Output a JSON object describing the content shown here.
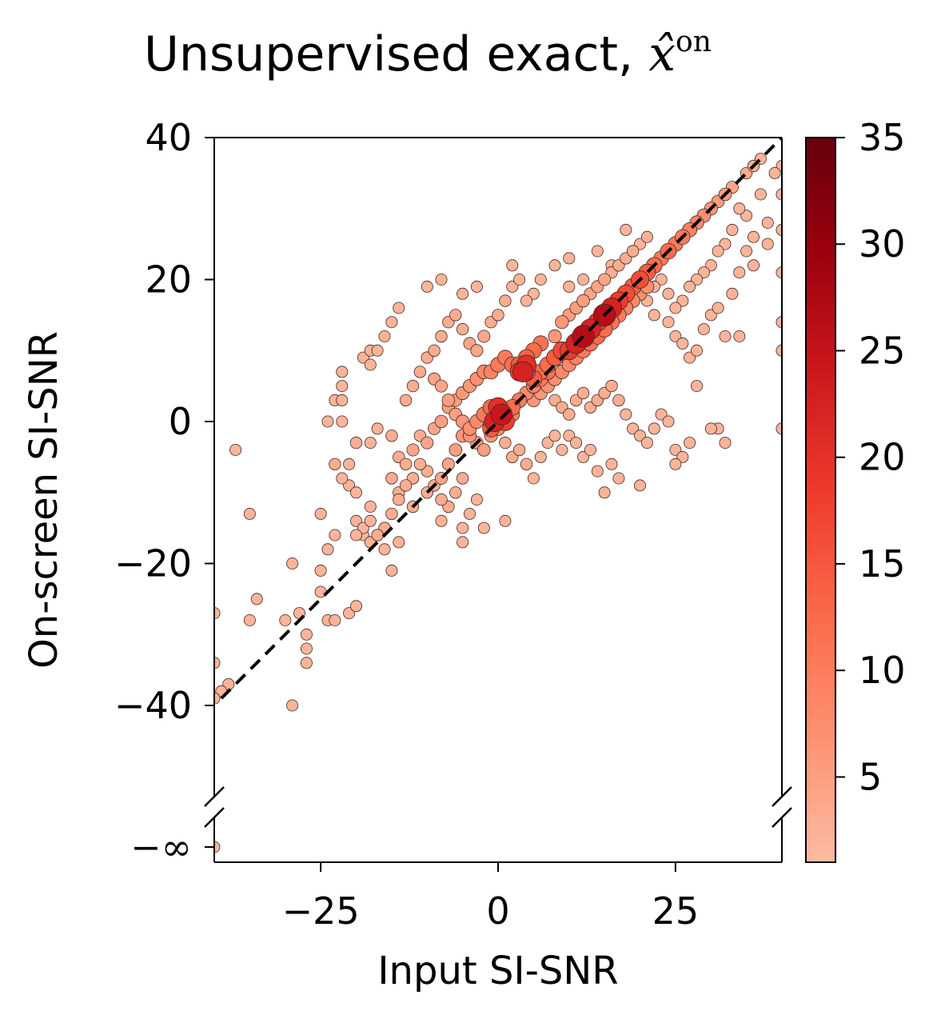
{
  "chart_data": {
    "type": "scatter",
    "title": "Unsupervised exact, ",
    "title_math": "x̂",
    "title_superscript": "on",
    "xlabel": "Input SI-SNR",
    "ylabel": "On-screen SI-SNR",
    "xlim": [
      -40,
      40
    ],
    "ylim": [
      -40,
      40
    ],
    "y_break_label": "−∞",
    "xticks": [
      -25,
      0,
      25
    ],
    "xtick_labels": [
      "−25",
      "0",
      "25"
    ],
    "yticks": [
      40,
      20,
      0,
      -20,
      -40
    ],
    "ytick_labels": [
      "40",
      "20",
      "0",
      "−20",
      "−40"
    ],
    "reference_line": "y = x",
    "colorbar": {
      "range": [
        1,
        35
      ],
      "ticks": [
        5,
        10,
        15,
        20,
        25,
        30,
        35
      ],
      "tick_labels": [
        "5",
        "10",
        "15",
        "20",
        "25",
        "30",
        "35"
      ],
      "colors": [
        "#fcbba1",
        "#fc9272",
        "#fb6a4a",
        "#ef3b2c",
        "#cb181d",
        "#99000d",
        "#67000d"
      ]
    },
    "marker_edge_color": "#3a2a2a",
    "points": [
      [
        -37,
        -4,
        2
      ],
      [
        -35,
        -13,
        2
      ],
      [
        -34,
        -25,
        2
      ],
      [
        -35,
        -28,
        2
      ],
      [
        -38,
        -37,
        2
      ],
      [
        -39,
        -38,
        2
      ],
      [
        -30,
        -28,
        2
      ],
      [
        -29,
        -20,
        2
      ],
      [
        -29,
        -40,
        2
      ],
      [
        -27,
        -30,
        2
      ],
      [
        -28,
        -27,
        2
      ],
      [
        -27,
        -32,
        2
      ],
      [
        -27,
        -34,
        2
      ],
      [
        -25,
        -24,
        2
      ],
      [
        -24,
        -28,
        2
      ],
      [
        -25,
        -21,
        2
      ],
      [
        -23,
        -28,
        2
      ],
      [
        -21,
        -27,
        2
      ],
      [
        -25,
        -13,
        2
      ],
      [
        -24,
        -18,
        2
      ],
      [
        -23,
        -16,
        2
      ],
      [
        -24,
        0,
        2
      ],
      [
        -22,
        0,
        2
      ],
      [
        -21,
        -6,
        2
      ],
      [
        -21,
        -9,
        2
      ],
      [
        -23,
        -6,
        3
      ],
      [
        -22,
        -8,
        2
      ],
      [
        -22,
        7,
        2
      ],
      [
        -22,
        5,
        2
      ],
      [
        -23,
        3,
        2
      ],
      [
        -22,
        3,
        2
      ],
      [
        -20,
        -10,
        2
      ],
      [
        -18,
        -12,
        2
      ],
      [
        -20,
        -14,
        2
      ],
      [
        -19,
        -16,
        2
      ],
      [
        -19,
        9,
        2
      ],
      [
        -18,
        10,
        2
      ],
      [
        -20,
        -3,
        3
      ],
      [
        -18,
        -3,
        2
      ],
      [
        -17,
        -1,
        2
      ],
      [
        -15,
        -2,
        3
      ],
      [
        -14,
        -5,
        3
      ],
      [
        -13,
        -6,
        3
      ],
      [
        -12,
        -4,
        4
      ],
      [
        -11,
        -2,
        3
      ],
      [
        -10,
        -3,
        4
      ],
      [
        -9,
        -1,
        4
      ],
      [
        -8,
        0,
        5
      ],
      [
        -7,
        2,
        5
      ],
      [
        -6,
        3,
        5
      ],
      [
        -5,
        4,
        6
      ],
      [
        -4,
        5,
        6
      ],
      [
        -3,
        6,
        7
      ],
      [
        -2,
        7,
        8
      ],
      [
        -1,
        7,
        9
      ],
      [
        0,
        8,
        10
      ],
      [
        1,
        9,
        10
      ],
      [
        2,
        8,
        12
      ],
      [
        3,
        8,
        14
      ],
      [
        4,
        9,
        13
      ],
      [
        5,
        10,
        12
      ],
      [
        6,
        11,
        11
      ],
      [
        -13,
        3,
        3
      ],
      [
        -12,
        5,
        3
      ],
      [
        -11,
        7,
        3
      ],
      [
        -10,
        9,
        3
      ],
      [
        -9,
        10,
        3
      ],
      [
        -8,
        12,
        3
      ],
      [
        -7,
        14,
        3
      ],
      [
        -6,
        15,
        3
      ],
      [
        -5,
        13,
        3
      ],
      [
        -4,
        11,
        4
      ],
      [
        -3,
        10,
        4
      ],
      [
        -2,
        12,
        4
      ],
      [
        -1,
        14,
        3
      ],
      [
        0,
        15,
        3
      ],
      [
        1,
        17,
        3
      ],
      [
        2,
        19,
        2
      ],
      [
        3,
        20,
        2
      ],
      [
        -3,
        19,
        2
      ],
      [
        -5,
        18,
        2
      ],
      [
        -8,
        20,
        2
      ],
      [
        -10,
        19,
        2
      ],
      [
        -14,
        16,
        2
      ],
      [
        -15,
        14,
        2
      ],
      [
        -16,
        12,
        2
      ],
      [
        -17,
        10,
        2
      ],
      [
        -18,
        8,
        2
      ],
      [
        -15,
        -8,
        3
      ],
      [
        -14,
        -10,
        3
      ],
      [
        -12,
        -12,
        3
      ],
      [
        -10,
        -10,
        3
      ],
      [
        -8,
        -8,
        4
      ],
      [
        -7,
        -6,
        4
      ],
      [
        -6,
        -4,
        5
      ],
      [
        -5,
        -2,
        6
      ],
      [
        -4,
        -1,
        7
      ],
      [
        -3,
        0,
        8
      ],
      [
        -2,
        1,
        10
      ],
      [
        -1,
        2,
        12
      ],
      [
        0,
        1,
        16
      ],
      [
        0,
        2,
        20
      ],
      [
        -0.5,
        0,
        22
      ],
      [
        0.5,
        1,
        24
      ],
      [
        1,
        0,
        18
      ],
      [
        -1,
        -1,
        14
      ],
      [
        2,
        2,
        12
      ],
      [
        3,
        3,
        10
      ],
      [
        3.5,
        7,
        22
      ],
      [
        4,
        8,
        20
      ],
      [
        3,
        7,
        18
      ],
      [
        4,
        7,
        16
      ],
      [
        5,
        6,
        14
      ],
      [
        6,
        7,
        12
      ],
      [
        7,
        8,
        12
      ],
      [
        8,
        9,
        14
      ],
      [
        9,
        10,
        16
      ],
      [
        10,
        10,
        18
      ],
      [
        11,
        11,
        22
      ],
      [
        12,
        12,
        26
      ],
      [
        13,
        13,
        22
      ],
      [
        14,
        14,
        18
      ],
      [
        15,
        15,
        26
      ],
      [
        16,
        16,
        22
      ],
      [
        17,
        17,
        18
      ],
      [
        18,
        18,
        16
      ],
      [
        19,
        19,
        14
      ],
      [
        20,
        20,
        16
      ],
      [
        21,
        21,
        14
      ],
      [
        22,
        22,
        12
      ],
      [
        23,
        23,
        10
      ],
      [
        24,
        24,
        12
      ],
      [
        25,
        25,
        10
      ],
      [
        26,
        26,
        10
      ],
      [
        27,
        27,
        9
      ],
      [
        28,
        28,
        8
      ],
      [
        29,
        29,
        7
      ],
      [
        30,
        30,
        6
      ],
      [
        31,
        31,
        5
      ],
      [
        32,
        32,
        5
      ],
      [
        33,
        33,
        4
      ],
      [
        35,
        35,
        3
      ],
      [
        36,
        36,
        3
      ],
      [
        37,
        37,
        2
      ],
      [
        8,
        12,
        6
      ],
      [
        9,
        14,
        6
      ],
      [
        10,
        15,
        5
      ],
      [
        11,
        16,
        5
      ],
      [
        12,
        17,
        5
      ],
      [
        13,
        18,
        4
      ],
      [
        14,
        19,
        4
      ],
      [
        15,
        20,
        4
      ],
      [
        16,
        21,
        3
      ],
      [
        17,
        22,
        3
      ],
      [
        18,
        23,
        3
      ],
      [
        19,
        24,
        3
      ],
      [
        20,
        25,
        2
      ],
      [
        21,
        26,
        2
      ],
      [
        14,
        24,
        2
      ],
      [
        18,
        27,
        2
      ],
      [
        12,
        20,
        2
      ],
      [
        10,
        19,
        2
      ],
      [
        8,
        22,
        2
      ],
      [
        6,
        20,
        2
      ],
      [
        5,
        18,
        2
      ],
      [
        4,
        17,
        2
      ],
      [
        2,
        22,
        2
      ],
      [
        10,
        23,
        2
      ],
      [
        16,
        22,
        2
      ],
      [
        20,
        18,
        2
      ],
      [
        22,
        15,
        2
      ],
      [
        24,
        14,
        2
      ],
      [
        25,
        12,
        2
      ],
      [
        26,
        11,
        2
      ],
      [
        27,
        9,
        2
      ],
      [
        28,
        10,
        2
      ],
      [
        29,
        13,
        2
      ],
      [
        30,
        15,
        2
      ],
      [
        31,
        16,
        2
      ],
      [
        32,
        12,
        2
      ],
      [
        33,
        18,
        2
      ],
      [
        34,
        21,
        2
      ],
      [
        35,
        24,
        2
      ],
      [
        36,
        22,
        2
      ],
      [
        8,
        3,
        3
      ],
      [
        9,
        2,
        3
      ],
      [
        10,
        1,
        3
      ],
      [
        11,
        3,
        3
      ],
      [
        12,
        4,
        3
      ],
      [
        13,
        2,
        3
      ],
      [
        14,
        3,
        3
      ],
      [
        15,
        4,
        3
      ],
      [
        16,
        5,
        3
      ],
      [
        17,
        3,
        3
      ],
      [
        18,
        1,
        2
      ],
      [
        19,
        -1,
        2
      ],
      [
        20,
        -2,
        2
      ],
      [
        21,
        -3,
        2
      ],
      [
        22,
        -1,
        2
      ],
      [
        23,
        1,
        2
      ],
      [
        24,
        0,
        2
      ],
      [
        25,
        -4,
        2
      ],
      [
        26,
        -5,
        2
      ],
      [
        27,
        -3,
        2
      ],
      [
        28,
        5,
        2
      ],
      [
        31,
        -1,
        2
      ],
      [
        32,
        -3,
        2
      ],
      [
        34,
        12,
        2
      ],
      [
        1,
        -3,
        3
      ],
      [
        2,
        -5,
        3
      ],
      [
        3,
        -4,
        3
      ],
      [
        4,
        -6,
        3
      ],
      [
        5,
        -8,
        2
      ],
      [
        6,
        -5,
        2
      ],
      [
        7,
        -3,
        2
      ],
      [
        8,
        -2,
        2
      ],
      [
        9,
        -4,
        2
      ],
      [
        10,
        -2,
        2
      ],
      [
        11,
        -3,
        2
      ],
      [
        12,
        -5,
        2
      ],
      [
        13,
        -4,
        2
      ],
      [
        14,
        -7,
        2
      ],
      [
        15,
        -10,
        2
      ],
      [
        16,
        -6,
        2
      ],
      [
        17,
        -8,
        2
      ],
      [
        20,
        -9,
        2
      ],
      [
        25,
        -6,
        2
      ],
      [
        30,
        -1,
        2
      ],
      [
        -5,
        -8,
        3
      ],
      [
        -6,
        -10,
        3
      ],
      [
        -7,
        -12,
        3
      ],
      [
        -8,
        -14,
        2
      ],
      [
        -5,
        -15,
        2
      ],
      [
        -5,
        -17,
        2
      ],
      [
        -4,
        -13,
        2
      ],
      [
        -3,
        -11,
        2
      ],
      [
        -2,
        -15,
        2
      ],
      [
        1,
        -14,
        2
      ],
      [
        -8,
        -11,
        3
      ],
      [
        -9,
        -9,
        3
      ],
      [
        -10,
        -7,
        3
      ],
      [
        -11,
        -6,
        3
      ],
      [
        -12,
        -8,
        3
      ],
      [
        -13,
        -9,
        3
      ],
      [
        -14,
        -11,
        3
      ],
      [
        -15,
        -13,
        3
      ],
      [
        -16,
        -15,
        3
      ],
      [
        -17,
        -16,
        3
      ],
      [
        -18,
        -17,
        2
      ],
      [
        -19,
        -15,
        2
      ],
      [
        -20,
        -16,
        2
      ],
      [
        -16,
        -18,
        2
      ],
      [
        -15,
        -21,
        2
      ],
      [
        -14,
        -17,
        2
      ],
      [
        -20,
        -26,
        2
      ],
      [
        -18,
        -14,
        2
      ],
      [
        -9,
        6,
        4
      ],
      [
        -8,
        5,
        4
      ],
      [
        -7,
        3,
        5
      ],
      [
        -6,
        1,
        5
      ],
      [
        -5,
        0,
        6
      ],
      [
        -4,
        -2,
        6
      ],
      [
        -3,
        -3,
        5
      ],
      [
        -2,
        -4,
        5
      ],
      [
        -1,
        -2,
        6
      ],
      [
        0,
        -1,
        7
      ],
      [
        1,
        0,
        8
      ],
      [
        2,
        1,
        9
      ],
      [
        3,
        3,
        9
      ],
      [
        4,
        4,
        8
      ],
      [
        5,
        5,
        9
      ],
      [
        6,
        6,
        10
      ],
      [
        7,
        7,
        11
      ],
      [
        5,
        3,
        6
      ],
      [
        6,
        4,
        6
      ],
      [
        7,
        5,
        7
      ],
      [
        8,
        6,
        7
      ],
      [
        9,
        7,
        8
      ],
      [
        10,
        8,
        8
      ],
      [
        11,
        9,
        9
      ],
      [
        12,
        10,
        10
      ],
      [
        13,
        11,
        11
      ],
      [
        14,
        12,
        12
      ],
      [
        15,
        13,
        12
      ],
      [
        16,
        14,
        11
      ],
      [
        17,
        15,
        10
      ],
      [
        18,
        16,
        9
      ],
      [
        19,
        17,
        8
      ],
      [
        20,
        18,
        7
      ],
      [
        21,
        19,
        7
      ],
      [
        -40,
        -27,
        2
      ],
      [
        -40,
        -34,
        2
      ],
      [
        -40,
        -39,
        2
      ],
      [
        40,
        -1,
        2
      ],
      [
        40,
        10,
        2
      ],
      [
        40,
        14,
        2
      ],
      [
        40,
        21,
        2
      ],
      [
        40,
        27,
        2
      ],
      [
        40,
        32,
        2
      ],
      [
        40,
        36,
        2
      ],
      [
        38,
        25,
        2
      ],
      [
        37,
        32,
        2
      ],
      [
        39,
        35,
        2
      ],
      [
        38,
        28,
        2
      ],
      [
        36,
        26,
        2
      ],
      [
        35,
        29,
        2
      ],
      [
        34,
        30,
        2
      ],
      [
        33,
        27,
        2
      ],
      [
        32,
        25,
        2
      ],
      [
        31,
        24,
        2
      ],
      [
        30,
        22,
        2
      ],
      [
        29,
        21,
        2
      ],
      [
        28,
        20,
        2
      ],
      [
        27,
        19,
        2
      ],
      [
        26,
        17,
        2
      ],
      [
        25,
        16,
        2
      ],
      [
        24,
        18,
        2
      ],
      [
        23,
        20,
        2
      ],
      [
        22,
        19,
        2
      ],
      [
        21,
        17,
        2
      ]
    ],
    "neg_inf_points": [
      [
        -40,
        2
      ]
    ]
  }
}
